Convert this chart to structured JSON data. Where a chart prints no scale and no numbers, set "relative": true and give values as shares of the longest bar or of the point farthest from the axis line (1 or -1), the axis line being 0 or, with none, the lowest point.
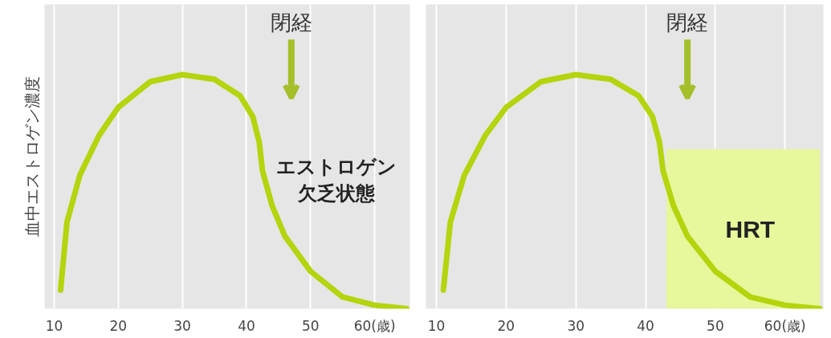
{
  "chart_data": [
    {
      "type": "line",
      "relative": true,
      "ylabel": "血中エストロゲン濃度",
      "x": [
        11,
        12,
        14,
        17,
        20,
        25,
        30,
        35,
        39,
        41,
        42,
        42.5,
        44,
        46,
        50,
        55,
        60,
        65
      ],
      "series": [
        {
          "color": "#b5d40c",
          "values": [
            0.08,
            0.37,
            0.57,
            0.74,
            0.86,
            0.97,
            1.0,
            0.98,
            0.91,
            0.82,
            0.71,
            0.59,
            0.44,
            0.31,
            0.16,
            0.05,
            0.015,
            0
          ]
        }
      ],
      "xlim": [
        8.5,
        65.5
      ],
      "xticks": [
        10,
        20,
        30,
        40,
        50,
        {
          "value": 60,
          "label": "60(歳)"
        }
      ],
      "grid": "x",
      "annotations": [
        "閉経",
        "エストロゲン欠乏状態"
      ]
    },
    {
      "type": "line",
      "relative": true,
      "x": [
        11,
        12,
        14,
        17,
        20,
        25,
        30,
        35,
        39,
        41,
        42,
        42.5,
        44,
        46,
        50,
        55,
        60,
        65
      ],
      "series": [
        {
          "type": "area",
          "name": "HRT",
          "color": "#e6f79c",
          "x": [
            43,
            65
          ],
          "values": [
            0.68,
            0.68
          ]
        },
        {
          "color": "#b5d40c",
          "values": [
            0.08,
            0.37,
            0.57,
            0.74,
            0.86,
            0.97,
            1.0,
            0.98,
            0.91,
            0.82,
            0.71,
            0.59,
            0.44,
            0.31,
            0.16,
            0.05,
            0.015,
            0
          ]
        }
      ],
      "xlim": [
        8.5,
        65.5
      ],
      "xticks": [
        10,
        20,
        30,
        40,
        50,
        {
          "value": 60,
          "label": "60(歳)"
        }
      ],
      "grid": "x",
      "annotations": [
        "閉経"
      ]
    }
  ]
}
